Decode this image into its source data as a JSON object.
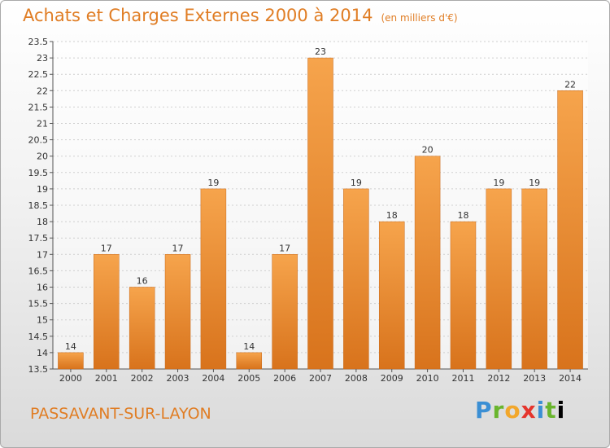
{
  "header": {
    "title": "Achats et Charges Externes 2000 à 2014",
    "unit": "(en milliers d'€)"
  },
  "footer": {
    "commune": "PASSAVANT-SUR-LAYON",
    "logo": [
      "P",
      "r",
      "o",
      "x",
      "i",
      "t",
      "i"
    ]
  },
  "colors": {
    "bar_top": "#f6a44c",
    "bar_bottom": "#d8731c",
    "title": "#e07d24"
  },
  "chart_data": {
    "type": "bar",
    "title": "Achats et Charges Externes 2000 à 2014",
    "subtitle": "(en milliers d'€)",
    "categories": [
      "2000",
      "2001",
      "2002",
      "2003",
      "2004",
      "2005",
      "2006",
      "2007",
      "2008",
      "2009",
      "2010",
      "2011",
      "2012",
      "2013",
      "2014"
    ],
    "values": [
      14,
      17,
      16,
      17,
      19,
      14,
      17,
      23,
      19,
      18,
      20,
      18,
      19,
      19,
      22
    ],
    "ylim": [
      13.5,
      23.5
    ],
    "yticks": [
      13.5,
      14,
      14.5,
      15,
      15.5,
      16,
      16.5,
      17,
      17.5,
      18,
      18.5,
      19,
      19.5,
      20,
      20.5,
      21,
      21.5,
      22,
      22.5,
      23,
      23.5
    ],
    "grid": true,
    "legend": "none"
  }
}
